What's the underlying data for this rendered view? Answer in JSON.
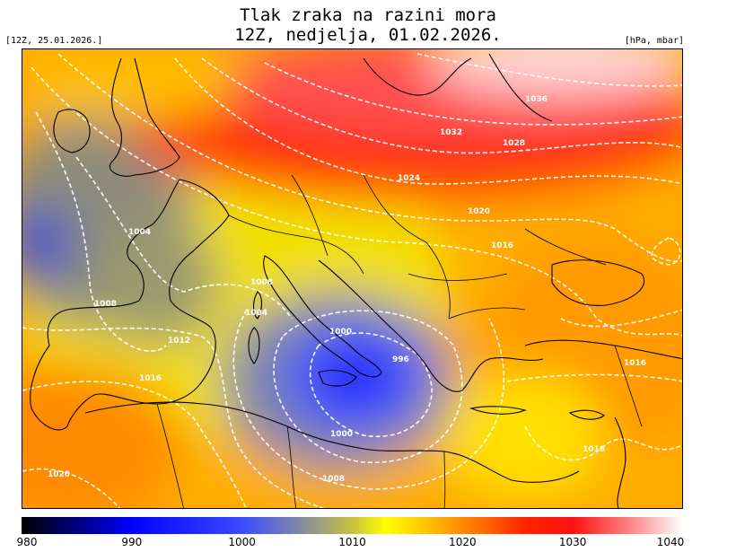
{
  "title": {
    "line1": "Tlak zraka na razini mora",
    "line2": "12Z, nedjelja, 01.02.2026."
  },
  "run_date": "[12Z, 25.01.2026.]",
  "units": "[hPa, mbar]",
  "colorbar": {
    "ticks": [
      "980",
      "990",
      "1000",
      "1010",
      "1020",
      "1030",
      "1040"
    ],
    "stops": [
      {
        "v": 980,
        "c": "#000000"
      },
      {
        "v": 990,
        "c": "#0000ff"
      },
      {
        "v": 1000,
        "c": "#3a4aff"
      },
      {
        "v": 1005,
        "c": "#7f86a8"
      },
      {
        "v": 1010,
        "c": "#c8c040"
      },
      {
        "v": 1013,
        "c": "#ffff00"
      },
      {
        "v": 1017,
        "c": "#ffc000"
      },
      {
        "v": 1020,
        "c": "#ff8a00"
      },
      {
        "v": 1026,
        "c": "#ff2000"
      },
      {
        "v": 1030,
        "c": "#ff1010"
      },
      {
        "v": 1035,
        "c": "#ff8080"
      },
      {
        "v": 1040,
        "c": "#ffffff"
      }
    ]
  },
  "isobar_labels": [
    "1036",
    "1032",
    "1028",
    "1024",
    "1020",
    "1016",
    "1004",
    "1008",
    "1004",
    "1008",
    "1012",
    "1016",
    "1000",
    "996",
    "1000",
    "1016",
    "1016",
    "1020",
    "1008"
  ],
  "pressure_systems": [
    {
      "name": "low-italy",
      "center_hpa": 996
    },
    {
      "name": "high-north",
      "center_hpa": 1036
    }
  ]
}
